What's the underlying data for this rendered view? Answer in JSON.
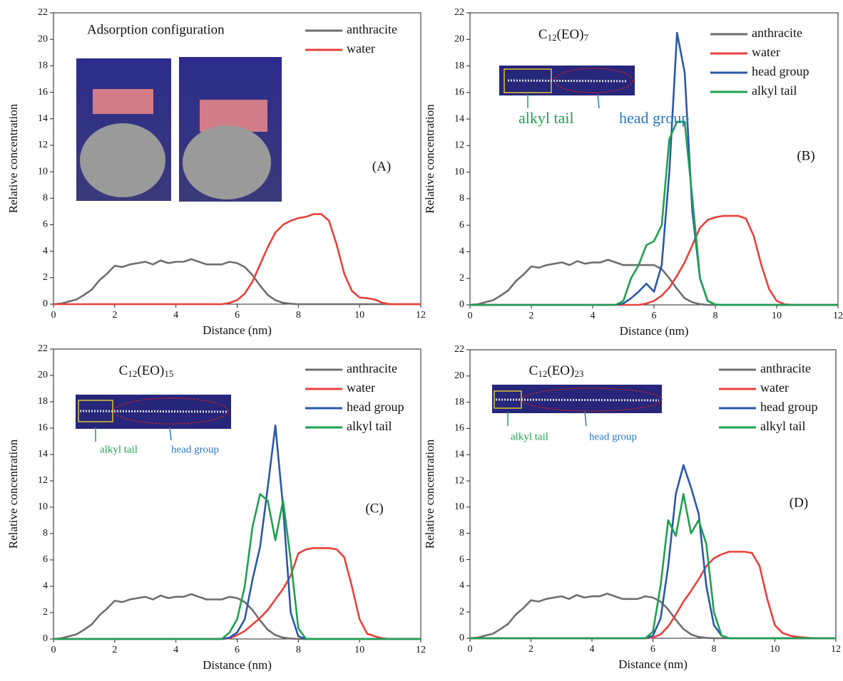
{
  "chart_data": [
    {
      "type": "line",
      "panel_label": "(A)",
      "heading": "Adsorption configuration",
      "xlabel": "Distance (nm)",
      "ylabel": "Relative concentration",
      "xlim": [
        0,
        12
      ],
      "ylim": [
        0,
        22
      ],
      "xticks": [
        0,
        2,
        4,
        6,
        8,
        10,
        12
      ],
      "yticks": [
        0,
        2,
        4,
        6,
        8,
        10,
        12,
        14,
        16,
        18,
        20,
        22
      ],
      "x": [
        0,
        0.25,
        0.5,
        0.75,
        1,
        1.25,
        1.5,
        1.75,
        2,
        2.25,
        2.5,
        2.75,
        3,
        3.25,
        3.5,
        3.75,
        4,
        4.25,
        4.5,
        4.75,
        5,
        5.25,
        5.5,
        5.75,
        6,
        6.25,
        6.5,
        6.75,
        7,
        7.25,
        7.5,
        7.75,
        8,
        8.25,
        8.5,
        8.75,
        9,
        9.25,
        9.5,
        9.75,
        10,
        10.25,
        10.5,
        10.75,
        11,
        11.25,
        11.5,
        11.75,
        12
      ],
      "series": [
        {
          "name": "anthracite",
          "color": "#6e6e6e",
          "values": [
            0,
            0.05,
            0.2,
            0.35,
            0.7,
            1.1,
            1.8,
            2.3,
            2.9,
            2.8,
            3.0,
            3.1,
            3.2,
            3.0,
            3.3,
            3.1,
            3.2,
            3.2,
            3.4,
            3.2,
            3.0,
            3.0,
            3.0,
            3.2,
            3.1,
            2.8,
            2.2,
            1.4,
            0.7,
            0.3,
            0.1,
            0.03,
            0,
            0,
            0,
            0,
            0,
            0,
            0,
            0,
            0,
            0,
            0,
            0,
            0,
            0,
            0,
            0,
            0
          ]
        },
        {
          "name": "water",
          "color": "#e8413b",
          "values": [
            0,
            0,
            0,
            0,
            0,
            0,
            0,
            0,
            0,
            0,
            0,
            0,
            0,
            0,
            0,
            0,
            0,
            0,
            0,
            0,
            0,
            0,
            0,
            0.1,
            0.3,
            0.8,
            1.7,
            3.0,
            4.3,
            5.4,
            6.0,
            6.3,
            6.5,
            6.6,
            6.8,
            6.8,
            6.3,
            4.5,
            2.3,
            1.0,
            0.5,
            0.45,
            0.35,
            0.1,
            0,
            0,
            0,
            0,
            0
          ]
        }
      ]
    },
    {
      "type": "line",
      "panel_label": "(B)",
      "heading_parts": [
        "C",
        "12",
        "(EO)",
        "7"
      ],
      "inset_labels": [
        "alkyl tail",
        "head group"
      ],
      "xlabel": "Distance (nm)",
      "ylabel": "Relative concentration",
      "xlim": [
        0,
        12
      ],
      "ylim": [
        0,
        22
      ],
      "xticks": [
        0,
        2,
        4,
        6,
        8,
        10,
        12
      ],
      "yticks": [
        0,
        2,
        4,
        6,
        8,
        10,
        12,
        14,
        16,
        18,
        20,
        22
      ],
      "x": [
        0,
        0.25,
        0.5,
        0.75,
        1,
        1.25,
        1.5,
        1.75,
        2,
        2.25,
        2.5,
        2.75,
        3,
        3.25,
        3.5,
        3.75,
        4,
        4.25,
        4.5,
        4.75,
        5,
        5.25,
        5.5,
        5.75,
        6,
        6.25,
        6.5,
        6.75,
        7,
        7.25,
        7.5,
        7.75,
        8,
        8.25,
        8.5,
        8.75,
        9,
        9.25,
        9.5,
        9.75,
        10,
        10.25,
        10.5,
        10.75,
        11,
        11.25,
        11.5,
        11.75,
        12
      ],
      "series": [
        {
          "name": "anthracite",
          "color": "#6e6e6e",
          "values": [
            0,
            0.05,
            0.2,
            0.35,
            0.7,
            1.1,
            1.8,
            2.3,
            2.9,
            2.8,
            3.0,
            3.1,
            3.2,
            3.0,
            3.3,
            3.1,
            3.2,
            3.2,
            3.4,
            3.2,
            3.0,
            3.0,
            3.0,
            3.0,
            3.0,
            2.7,
            2.0,
            1.2,
            0.5,
            0.2,
            0.05,
            0,
            0,
            0,
            0,
            0,
            0,
            0,
            0,
            0,
            0,
            0,
            0,
            0,
            0,
            0,
            0,
            0,
            0
          ]
        },
        {
          "name": "water",
          "color": "#e8413b",
          "values": [
            0,
            0,
            0,
            0,
            0,
            0,
            0,
            0,
            0,
            0,
            0,
            0,
            0,
            0,
            0,
            0,
            0,
            0,
            0,
            0,
            0,
            0,
            0,
            0.1,
            0.3,
            0.7,
            1.3,
            2.2,
            3.2,
            4.5,
            5.8,
            6.4,
            6.6,
            6.7,
            6.7,
            6.7,
            6.5,
            5.2,
            3.0,
            1.2,
            0.3,
            0.05,
            0,
            0,
            0,
            0,
            0,
            0,
            0
          ]
        },
        {
          "name": "head group",
          "color": "#2a58a8",
          "values": [
            0,
            0,
            0,
            0,
            0,
            0,
            0,
            0,
            0,
            0,
            0,
            0,
            0,
            0,
            0,
            0,
            0,
            0,
            0,
            0,
            0.1,
            0.5,
            1.0,
            1.6,
            1.0,
            3.0,
            10,
            20.5,
            17.5,
            7,
            2,
            0.3,
            0.02,
            0,
            0,
            0,
            0,
            0,
            0,
            0,
            0,
            0,
            0,
            0,
            0,
            0,
            0,
            0,
            0
          ]
        },
        {
          "name": "alkyl tail",
          "color": "#1fa050",
          "values": [
            0,
            0,
            0,
            0,
            0,
            0,
            0,
            0,
            0,
            0,
            0,
            0,
            0,
            0,
            0,
            0,
            0,
            0,
            0,
            0,
            0.3,
            2.0,
            3.0,
            4.5,
            4.8,
            6.0,
            12.5,
            13.8,
            13.8,
            8,
            2,
            0.3,
            0.02,
            0,
            0,
            0,
            0,
            0,
            0,
            0,
            0,
            0,
            0,
            0,
            0,
            0,
            0,
            0,
            0
          ]
        }
      ]
    },
    {
      "type": "line",
      "panel_label": "(C)",
      "heading_parts": [
        "C",
        "12",
        "(EO)",
        "15"
      ],
      "inset_labels": [
        "alkyl tail",
        "head group"
      ],
      "xlabel": "Distance (nm)",
      "ylabel": "Relative concentration",
      "xlim": [
        0,
        12
      ],
      "ylim": [
        0,
        22
      ],
      "xticks": [
        0,
        2,
        4,
        6,
        8,
        10,
        12
      ],
      "yticks": [
        0,
        2,
        4,
        6,
        8,
        10,
        12,
        14,
        16,
        18,
        20,
        22
      ],
      "x": [
        0,
        0.25,
        0.5,
        0.75,
        1,
        1.25,
        1.5,
        1.75,
        2,
        2.25,
        2.5,
        2.75,
        3,
        3.25,
        3.5,
        3.75,
        4,
        4.25,
        4.5,
        4.75,
        5,
        5.25,
        5.5,
        5.75,
        6,
        6.25,
        6.5,
        6.75,
        7,
        7.25,
        7.5,
        7.75,
        8,
        8.25,
        8.5,
        8.75,
        9,
        9.25,
        9.5,
        9.75,
        10,
        10.25,
        10.5,
        10.75,
        11,
        11.25,
        11.5,
        11.75,
        12
      ],
      "series": [
        {
          "name": "anthracite",
          "color": "#6e6e6e",
          "values": [
            0,
            0.05,
            0.2,
            0.35,
            0.7,
            1.1,
            1.8,
            2.3,
            2.9,
            2.8,
            3.0,
            3.1,
            3.2,
            3.0,
            3.3,
            3.1,
            3.2,
            3.2,
            3.4,
            3.2,
            3.0,
            3.0,
            3.0,
            3.2,
            3.1,
            2.8,
            2.2,
            1.4,
            0.7,
            0.3,
            0.1,
            0.03,
            0,
            0,
            0,
            0,
            0,
            0,
            0,
            0,
            0,
            0,
            0,
            0,
            0,
            0,
            0,
            0,
            0
          ]
        },
        {
          "name": "water",
          "color": "#e8413b",
          "values": [
            0,
            0,
            0,
            0,
            0,
            0,
            0,
            0,
            0,
            0,
            0,
            0,
            0,
            0,
            0,
            0,
            0,
            0,
            0,
            0,
            0,
            0,
            0,
            0.05,
            0.3,
            0.6,
            1.1,
            1.6,
            2.2,
            3.0,
            3.8,
            4.8,
            6.5,
            6.8,
            6.9,
            6.9,
            6.9,
            6.8,
            6.2,
            4.0,
            1.5,
            0.4,
            0.2,
            0.05,
            0,
            0,
            0,
            0,
            0
          ]
        },
        {
          "name": "head group",
          "color": "#2a58a8",
          "values": [
            0,
            0,
            0,
            0,
            0,
            0,
            0,
            0,
            0,
            0,
            0,
            0,
            0,
            0,
            0,
            0,
            0,
            0,
            0,
            0,
            0,
            0,
            0,
            0.1,
            0.5,
            1.5,
            4.5,
            7,
            11.5,
            16.2,
            10,
            2,
            0.2,
            0,
            0,
            0,
            0,
            0,
            0,
            0,
            0,
            0,
            0,
            0,
            0,
            0,
            0,
            0,
            0
          ]
        },
        {
          "name": "alkyl tail",
          "color": "#1fa050",
          "values": [
            0,
            0,
            0,
            0,
            0,
            0,
            0,
            0,
            0,
            0,
            0,
            0,
            0,
            0,
            0,
            0,
            0,
            0,
            0,
            0,
            0,
            0,
            0,
            0.5,
            1.5,
            4,
            8.5,
            11,
            10.5,
            7.5,
            10.5,
            6,
            0.8,
            0,
            0,
            0,
            0,
            0,
            0,
            0,
            0,
            0,
            0,
            0,
            0,
            0,
            0,
            0,
            0
          ]
        }
      ]
    },
    {
      "type": "line",
      "panel_label": "(D)",
      "heading_parts": [
        "C",
        "12",
        "(EO)",
        "23"
      ],
      "inset_labels": [
        "alkyl tail",
        "head group"
      ],
      "xlabel": "Distance (nm)",
      "ylabel": "Relative concentration",
      "xlim": [
        0,
        12
      ],
      "ylim": [
        0,
        22
      ],
      "xticks": [
        0,
        2,
        4,
        6,
        8,
        10,
        12
      ],
      "yticks": [
        0,
        2,
        4,
        6,
        8,
        10,
        12,
        14,
        16,
        18,
        20,
        22
      ],
      "x": [
        0,
        0.25,
        0.5,
        0.75,
        1,
        1.25,
        1.5,
        1.75,
        2,
        2.25,
        2.5,
        2.75,
        3,
        3.25,
        3.5,
        3.75,
        4,
        4.25,
        4.5,
        4.75,
        5,
        5.25,
        5.5,
        5.75,
        6,
        6.25,
        6.5,
        6.75,
        7,
        7.25,
        7.5,
        7.75,
        8,
        8.25,
        8.5,
        8.75,
        9,
        9.25,
        9.5,
        9.75,
        10,
        10.25,
        10.5,
        10.75,
        11,
        11.25,
        11.5,
        11.75,
        12
      ],
      "series": [
        {
          "name": "anthracite",
          "color": "#6e6e6e",
          "values": [
            0,
            0.05,
            0.2,
            0.35,
            0.7,
            1.1,
            1.8,
            2.3,
            2.9,
            2.8,
            3.0,
            3.1,
            3.2,
            3.0,
            3.3,
            3.1,
            3.2,
            3.2,
            3.4,
            3.2,
            3.0,
            3.0,
            3.0,
            3.2,
            3.1,
            2.8,
            2.2,
            1.4,
            0.7,
            0.3,
            0.1,
            0.03,
            0,
            0,
            0,
            0,
            0,
            0,
            0,
            0,
            0,
            0,
            0,
            0,
            0,
            0,
            0,
            0,
            0
          ]
        },
        {
          "name": "water",
          "color": "#e8413b",
          "values": [
            0,
            0,
            0,
            0,
            0,
            0,
            0,
            0,
            0,
            0,
            0,
            0,
            0,
            0,
            0,
            0,
            0,
            0,
            0,
            0,
            0,
            0,
            0,
            0,
            0.05,
            0.3,
            0.9,
            1.8,
            2.8,
            3.6,
            4.5,
            5.5,
            6.1,
            6.4,
            6.6,
            6.6,
            6.6,
            6.5,
            5.5,
            3.0,
            1.0,
            0.4,
            0.2,
            0.1,
            0.05,
            0,
            0,
            0,
            0
          ]
        },
        {
          "name": "head group",
          "color": "#2a58a8",
          "values": [
            0,
            0,
            0,
            0,
            0,
            0,
            0,
            0,
            0,
            0,
            0,
            0,
            0,
            0,
            0,
            0,
            0,
            0,
            0,
            0,
            0,
            0,
            0,
            0,
            0.2,
            1.5,
            5.5,
            11,
            13.2,
            11.5,
            9.5,
            4,
            1,
            0.2,
            0,
            0,
            0,
            0,
            0,
            0,
            0,
            0,
            0,
            0,
            0,
            0,
            0,
            0,
            0
          ]
        },
        {
          "name": "alkyl tail",
          "color": "#1fa050",
          "values": [
            0,
            0,
            0,
            0,
            0,
            0,
            0,
            0,
            0,
            0,
            0,
            0,
            0,
            0,
            0,
            0,
            0,
            0,
            0,
            0,
            0,
            0,
            0,
            0,
            0.5,
            4,
            9.0,
            7.8,
            11,
            8,
            9,
            7.2,
            2,
            0.2,
            0,
            0,
            0,
            0,
            0,
            0,
            0,
            0,
            0,
            0,
            0,
            0,
            0,
            0,
            0
          ]
        }
      ]
    }
  ]
}
